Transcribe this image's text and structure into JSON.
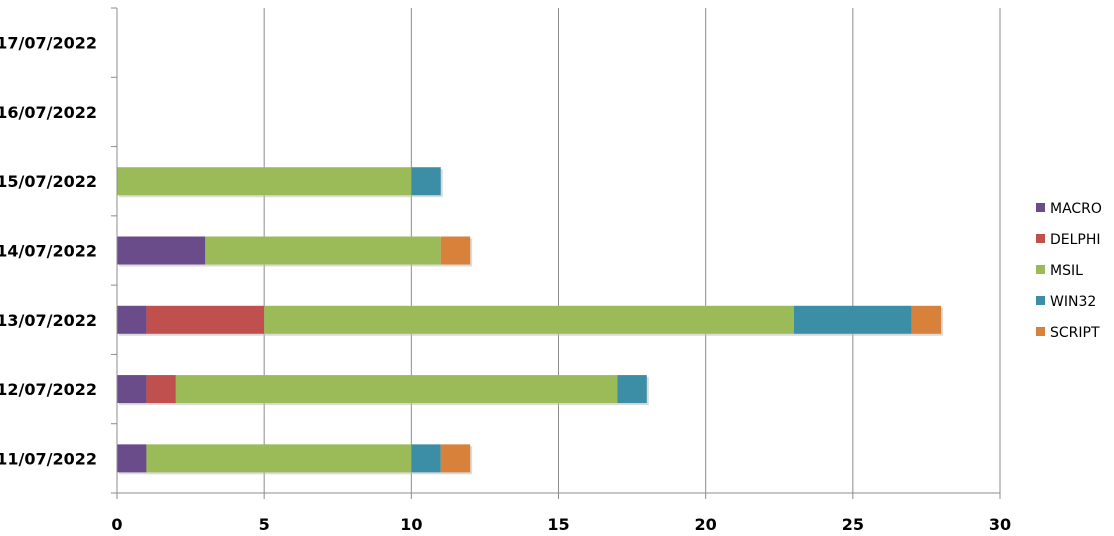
{
  "chart_data": {
    "type": "bar",
    "orientation": "horizontal",
    "stacked": true,
    "categories": [
      "11/07/2022",
      "12/07/2022",
      "13/07/2022",
      "14/07/2022",
      "15/07/2022",
      "16/07/2022",
      "17/07/2022"
    ],
    "series": [
      {
        "name": "MACRO",
        "color": "#6a4c8a",
        "values": [
          1,
          1,
          1,
          3,
          0,
          0,
          0
        ]
      },
      {
        "name": "DELPHI",
        "color": "#c0504d",
        "values": [
          0,
          1,
          4,
          0,
          0,
          0,
          0
        ]
      },
      {
        "name": "MSIL",
        "color": "#9bbb59",
        "values": [
          9,
          15,
          18,
          8,
          10,
          0,
          0
        ]
      },
      {
        "name": "WIN32",
        "color": "#3c8ea6",
        "values": [
          1,
          1,
          4,
          0,
          1,
          0,
          0
        ]
      },
      {
        "name": "SCRIPT",
        "color": "#d7813a",
        "values": [
          1,
          0,
          1,
          1,
          0,
          0,
          0
        ]
      }
    ],
    "xlim": [
      0,
      30
    ],
    "x_ticks": [
      0,
      5,
      10,
      15,
      20,
      25,
      30
    ],
    "x_tick_labels": [
      "0",
      "5",
      "10",
      "15",
      "20",
      "25",
      "30"
    ],
    "grid": "vertical",
    "legend_position": "right",
    "title": "",
    "xlabel": "",
    "ylabel": ""
  }
}
